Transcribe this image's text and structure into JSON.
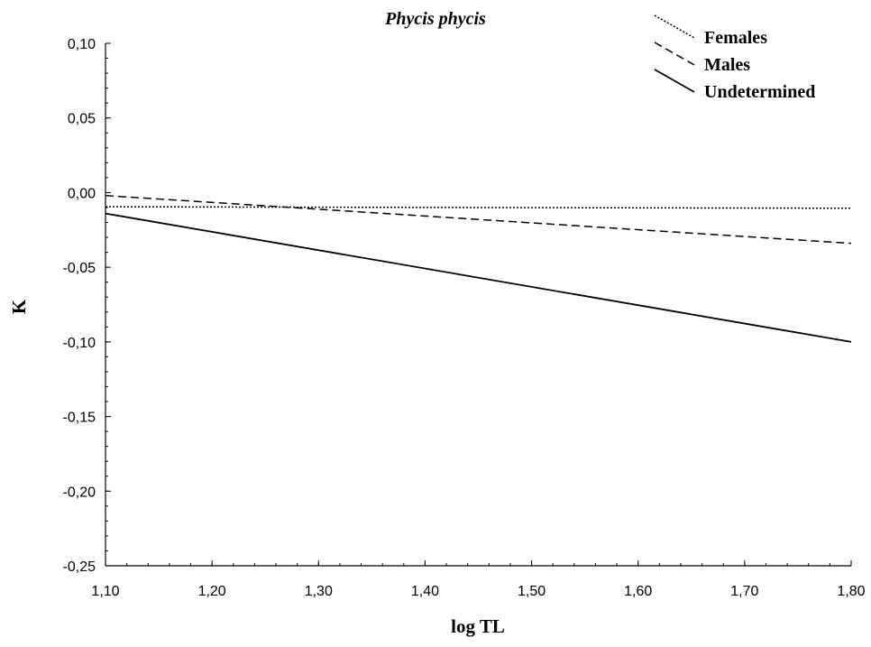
{
  "chart_data": {
    "type": "line",
    "title": "Phycis phycis",
    "xlabel": "log TL",
    "ylabel": "K",
    "xlim": [
      1.1,
      1.8
    ],
    "ylim": [
      -0.25,
      0.1
    ],
    "x_ticks": [
      1.1,
      1.2,
      1.3,
      1.4,
      1.5,
      1.6,
      1.7,
      1.8
    ],
    "x_tick_labels": [
      "1,10",
      "1,20",
      "1,30",
      "1,40",
      "1,50",
      "1,60",
      "1,70",
      "1,80"
    ],
    "y_ticks": [
      0.1,
      0.05,
      0.0,
      -0.05,
      -0.1,
      -0.15,
      -0.2,
      -0.25
    ],
    "y_tick_labels": [
      "0,10",
      "0,05",
      "0,00",
      "-0,05",
      "-0,10",
      "-0,15",
      "-0,20",
      "-0,25"
    ],
    "grid": false,
    "legend_position": "top-right",
    "series": [
      {
        "name": "Females",
        "style": "dotted",
        "color": "#000000",
        "x": [
          1.1,
          1.8
        ],
        "y": [
          -0.0095,
          -0.0105
        ]
      },
      {
        "name": "Males",
        "style": "dashed",
        "color": "#000000",
        "x": [
          1.1,
          1.8
        ],
        "y": [
          -0.002,
          -0.034
        ]
      },
      {
        "name": "Undetermined",
        "style": "solid",
        "color": "#000000",
        "x": [
          1.1,
          1.8
        ],
        "y": [
          -0.014,
          -0.1
        ]
      }
    ]
  }
}
